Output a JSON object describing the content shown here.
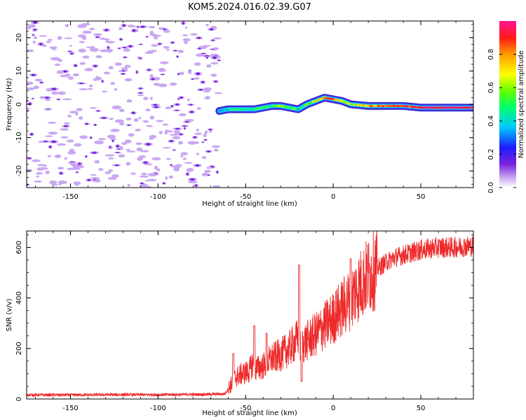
{
  "figure_title": "KOM5.2024.016.02.39.G07",
  "colors": {
    "snr_line": "#ee2a2a",
    "noise_speckle": "#c9a8f2",
    "noise_core": "#7a22dd",
    "ridge": "#ff2020"
  },
  "chart_data": [
    {
      "type": "heatmap",
      "title": "KOM5.2024.016.02.39.G07",
      "xlabel": "Height of straight line (km)",
      "ylabel": "Frequency (Hz)",
      "xlim": [
        -175,
        80
      ],
      "ylim": [
        -25,
        25
      ],
      "xticks": [
        -150,
        -100,
        -50,
        0,
        50
      ],
      "yticks": [
        -20,
        -10,
        0,
        10,
        20
      ],
      "colorbar": {
        "label": "Normalized spectral amplitude",
        "range": [
          0,
          1
        ],
        "ticks": [
          "0.0",
          "0.2",
          "0.4",
          "0.6",
          "0.8"
        ],
        "colormap": "rainbow (white-violet-blue-cyan-green-yellow-orange-red-magenta)"
      },
      "noise_region_x": [
        -175,
        -65
      ],
      "ridge": {
        "x": [
          -65,
          -60,
          -55,
          -50,
          -45,
          -40,
          -35,
          -30,
          -25,
          -20,
          -15,
          -10,
          -5,
          0,
          5,
          10,
          20,
          30,
          40,
          50,
          60,
          70,
          80
        ],
        "y": [
          -2,
          -1.5,
          -1.5,
          -1.5,
          -1.5,
          -1,
          -0.5,
          -0.5,
          -1,
          -1.5,
          0,
          1,
          2,
          1.5,
          1,
          0,
          -0.5,
          -0.5,
          -0.5,
          -1,
          -1,
          -1,
          -1
        ],
        "amplitude": [
          0.25,
          0.4,
          0.45,
          0.4,
          0.5,
          0.45,
          0.5,
          0.6,
          0.55,
          0.45,
          0.5,
          0.6,
          0.9,
          0.85,
          0.7,
          0.6,
          0.75,
          0.8,
          0.9,
          0.95,
          0.95,
          0.95,
          0.95
        ]
      }
    },
    {
      "type": "line",
      "xlabel": "Height of straight line (km)",
      "ylabel": "SNR (v/v)",
      "xlim": [
        -175,
        80
      ],
      "ylim": [
        0,
        665
      ],
      "xticks": [
        -150,
        -100,
        -50,
        0,
        50
      ],
      "yticks": [
        0,
        200,
        400,
        600
      ],
      "series": [
        {
          "x": [
            -175,
            -150,
            -125,
            -100,
            -75,
            -62,
            -58,
            -56,
            -52,
            -48,
            -46,
            -44,
            -40,
            -35,
            -30,
            -25,
            -21,
            -20,
            -19,
            -18,
            -15,
            -10,
            -5,
            0,
            5,
            10,
            15,
            20,
            25,
            30,
            35,
            40,
            45,
            50,
            55,
            60,
            65,
            70,
            75,
            80
          ],
          "y": [
            16,
            16,
            17,
            17,
            18,
            20,
            60,
            85,
            100,
            110,
            140,
            120,
            130,
            160,
            175,
            200,
            230,
            250,
            205,
            215,
            230,
            255,
            290,
            320,
            360,
            400,
            450,
            490,
            515,
            540,
            560,
            570,
            580,
            590,
            595,
            600,
            600,
            600,
            605,
            605
          ],
          "spikes": [
            {
              "x": -57,
              "y": 180
            },
            {
              "x": -45,
              "y": 290
            },
            {
              "x": -38,
              "y": 260
            },
            {
              "x": -19.5,
              "y": 530
            },
            {
              "x": -18,
              "y": 70
            },
            {
              "x": 10,
              "y": 555
            }
          ]
        }
      ]
    }
  ]
}
